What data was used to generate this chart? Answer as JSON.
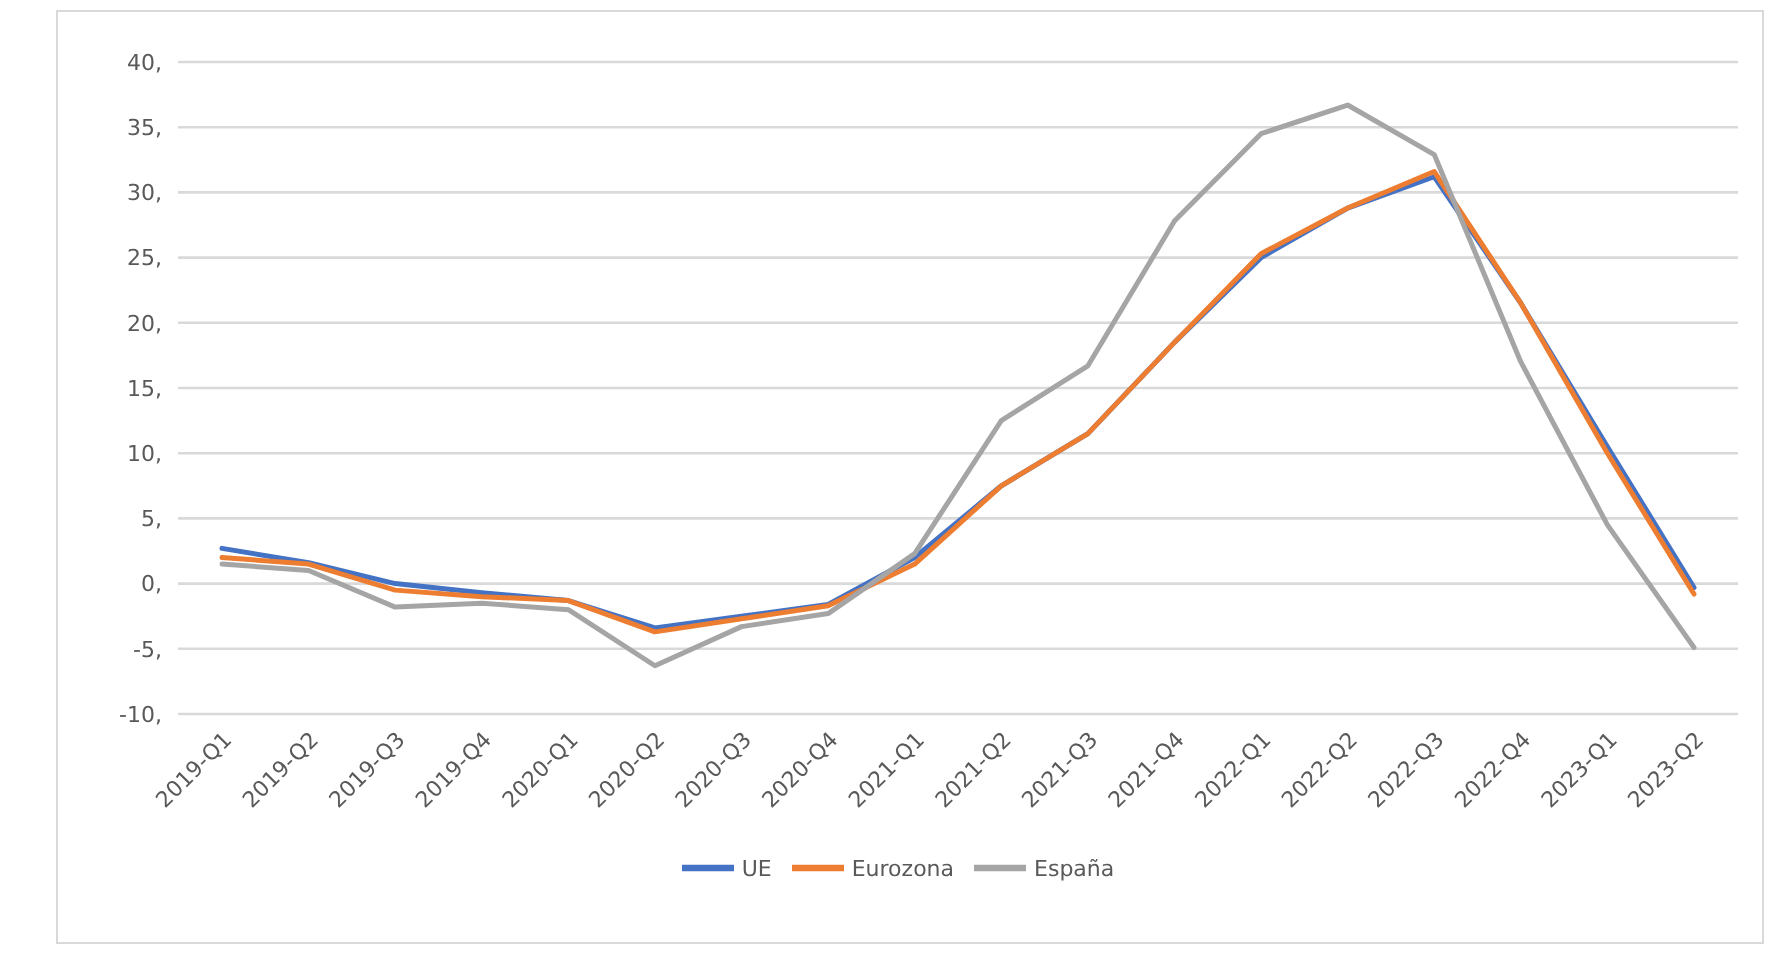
{
  "chart_data": {
    "type": "line",
    "categories": [
      "2019-Q1",
      "2019-Q2",
      "2019-Q3",
      "2019-Q4",
      "2020-Q1",
      "2020-Q2",
      "2020-Q3",
      "2020-Q4",
      "2021-Q1",
      "2021-Q2",
      "2021-Q3",
      "2021-Q4",
      "2022-Q1",
      "2022-Q2",
      "2022-Q3",
      "2022-Q4",
      "2023-Q1",
      "2023-Q2"
    ],
    "series": [
      {
        "name": "UE",
        "color": "#4472c4",
        "values": [
          2.7,
          1.6,
          0,
          -0.7,
          -1.3,
          -3.4,
          -2.5,
          -1.6,
          2,
          7.5,
          11.5,
          18.5,
          25,
          28.8,
          31.2,
          21.5,
          10.5,
          -0.3
        ]
      },
      {
        "name": "Eurozona",
        "color": "#ed7d31",
        "values": [
          2,
          1.5,
          -0.5,
          -1,
          -1.3,
          -3.7,
          -2.7,
          -1.7,
          1.5,
          7.5,
          11.5,
          18.5,
          25.3,
          28.8,
          31.6,
          21.5,
          10,
          -0.8
        ]
      },
      {
        "name": "España",
        "color": "#a5a5a5",
        "values": [
          1.5,
          1,
          -1.8,
          -1.5,
          -2,
          -6.3,
          -3.3,
          -2.3,
          2.3,
          12.5,
          16.7,
          27.8,
          34.5,
          36.7,
          32.9,
          17,
          4.5,
          -4.9
        ]
      }
    ],
    "ylim": [
      -10,
      40
    ],
    "yticks": [
      {
        "value": -10,
        "label": "-10,"
      },
      {
        "value": -5,
        "label": "-5,"
      },
      {
        "value": 0,
        "label": "0,"
      },
      {
        "value": 5,
        "label": "5,"
      },
      {
        "value": 10,
        "label": "10,"
      },
      {
        "value": 15,
        "label": "15,"
      },
      {
        "value": 20,
        "label": "20,"
      },
      {
        "value": 25,
        "label": "25,"
      },
      {
        "value": 30,
        "label": "30,"
      },
      {
        "value": 35,
        "label": "35,"
      },
      {
        "value": 40,
        "label": "40,"
      }
    ],
    "grid": "y",
    "legend": "bottom"
  }
}
